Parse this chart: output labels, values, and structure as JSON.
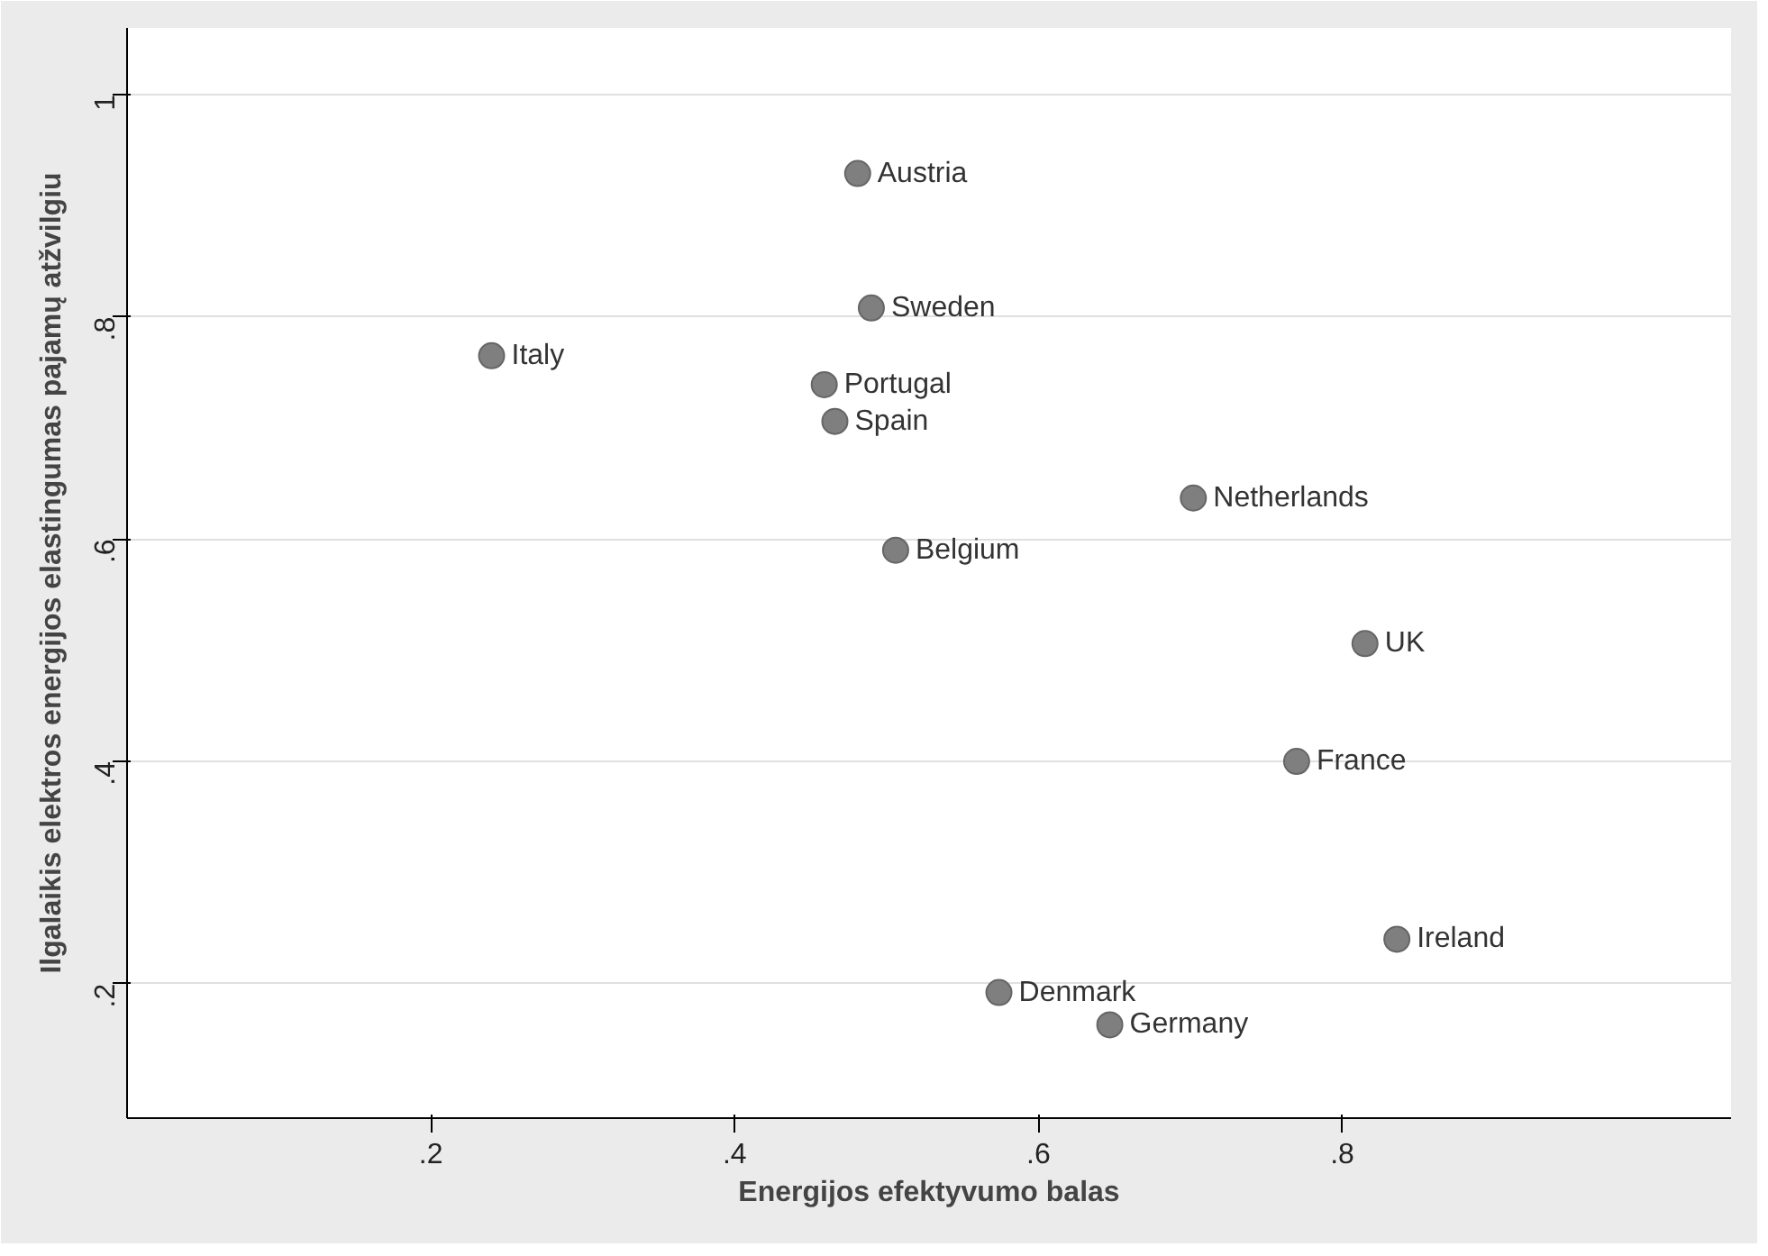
{
  "chart_data": {
    "type": "scatter",
    "xlabel": "Energijos efektyvumo balas",
    "ylabel": "Ilgalaikis elektros energijos elastingumas pajamų atžvilgiu",
    "x": [
      0.481,
      0.49,
      0.24,
      0.459,
      0.466,
      0.702,
      0.506,
      0.815,
      0.77,
      0.836,
      0.574,
      0.647
    ],
    "values": [
      0.929,
      0.808,
      0.765,
      0.739,
      0.706,
      0.637,
      0.59,
      0.506,
      0.4,
      0.24,
      0.192,
      0.163
    ],
    "color": "#7f7f7f",
    "marker": "circle",
    "grid": "y",
    "xlim": [
      0,
      1.056
    ],
    "ylim": [
      0.079,
      1.06
    ],
    "xticks": [
      {
        "value": 0.2,
        "label": ".2"
      },
      {
        "value": 0.4,
        "label": ".4"
      },
      {
        "value": 0.6,
        "label": ".6"
      },
      {
        "value": 0.8,
        "label": ".8"
      }
    ],
    "yticks": [
      {
        "value": 0.2,
        "label": ".2"
      },
      {
        "value": 0.4,
        "label": ".4"
      },
      {
        "value": 0.6,
        "label": ".6"
      },
      {
        "value": 0.8,
        "label": ".8"
      },
      1
    ],
    "annotations": [
      {
        "text": "Austria",
        "x": 0.481,
        "y": 0.929
      },
      {
        "text": "Sweden",
        "x": 0.49,
        "y": 0.808
      },
      {
        "text": "Italy",
        "x": 0.24,
        "y": 0.765
      },
      {
        "text": "Portugal",
        "x": 0.459,
        "y": 0.739
      },
      {
        "text": "Spain",
        "x": 0.466,
        "y": 0.706
      },
      {
        "text": "Netherlands",
        "x": 0.702,
        "y": 0.637
      },
      {
        "text": "Belgium",
        "x": 0.506,
        "y": 0.59
      },
      {
        "text": "UK",
        "x": 0.815,
        "y": 0.506
      },
      {
        "text": "France",
        "x": 0.77,
        "y": 0.4
      },
      {
        "text": "Ireland",
        "x": 0.836,
        "y": 0.24
      },
      {
        "text": "Denmark",
        "x": 0.574,
        "y": 0.192
      },
      {
        "text": "Germany",
        "x": 0.647,
        "y": 0.163
      }
    ]
  }
}
